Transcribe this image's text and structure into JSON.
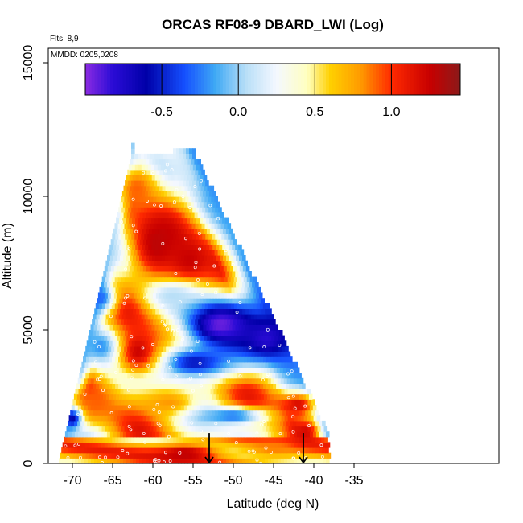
{
  "chart_data": {
    "type": "heatmap",
    "title": "ORCAS RF08-9 DBARD_LWI (Log)",
    "xlabel": "Latitude (deg N)",
    "ylabel": "Altitude (m)",
    "xlim": [
      -72.5,
      -35
    ],
    "ylim": [
      0,
      16000
    ],
    "xticks": [
      -70,
      -65,
      -60,
      -55,
      -50,
      -45,
      -40,
      -35
    ],
    "yticks": [
      0,
      5000,
      10000,
      15000
    ],
    "xtick_labels": [
      "-70",
      "-65",
      "-60",
      "-55",
      "-50",
      "-45",
      "-40",
      "-35"
    ],
    "ytick_labels": [
      "0",
      "5000",
      "10000",
      "15000"
    ],
    "flights_label": "Flts: 8,9",
    "dates_label": "MMDD: 0205,0208",
    "colorbar": {
      "range": [
        -1.0,
        1.45
      ],
      "ticks": [
        -0.5,
        0.0,
        0.5,
        1.0
      ],
      "tick_labels": [
        "-0.5",
        "0.0",
        "0.5",
        "1.0"
      ],
      "stops": [
        {
          "v": -1.0,
          "color": "#8a2be2"
        },
        {
          "v": -0.82,
          "color": "#2b0cd6"
        },
        {
          "v": -0.6,
          "color": "#0000a8"
        },
        {
          "v": -0.35,
          "color": "#1550ff"
        },
        {
          "v": -0.15,
          "color": "#3fa9f5"
        },
        {
          "v": 0.05,
          "color": "#b9dff7"
        },
        {
          "v": 0.25,
          "color": "#f4f8ff"
        },
        {
          "v": 0.45,
          "color": "#ffffc0"
        },
        {
          "v": 0.6,
          "color": "#ffd000"
        },
        {
          "v": 0.8,
          "color": "#ff9a00"
        },
        {
          "v": 1.0,
          "color": "#ff2a00"
        },
        {
          "v": 1.25,
          "color": "#c80000"
        },
        {
          "v": 1.45,
          "color": "#8b1a1a"
        }
      ]
    },
    "domain": {
      "lat_min": -71.7,
      "top_left_lat": -62.7,
      "top_left_alt": 11400,
      "top_right_lat": -55.2,
      "top_right_alt": 11700,
      "lat_max": -38.3,
      "bottom_right_alt": 1000
    },
    "features": [
      {
        "lat": -59.5,
        "alt": 8200,
        "v": 1.3,
        "s_lat": 3.5,
        "s_alt": 1400
      },
      {
        "lat": -55.5,
        "alt": 7600,
        "v": 1.25,
        "s_lat": 3.5,
        "s_alt": 1100
      },
      {
        "lat": -62.0,
        "alt": 10300,
        "v": 0.9,
        "s_lat": 3.0,
        "s_alt": 900
      },
      {
        "lat": -51.5,
        "alt": 5200,
        "v": -0.95,
        "s_lat": 5.0,
        "s_alt": 1000
      },
      {
        "lat": -46.0,
        "alt": 4700,
        "v": -0.8,
        "s_lat": 3.5,
        "s_alt": 900
      },
      {
        "lat": -55.0,
        "alt": 3800,
        "v": -0.55,
        "s_lat": 6.0,
        "s_alt": 700
      },
      {
        "lat": -62.0,
        "alt": 4200,
        "v": 1.25,
        "s_lat": 3.2,
        "s_alt": 1000
      },
      {
        "lat": -66.5,
        "alt": 4400,
        "v": -0.2,
        "s_lat": 2.2,
        "s_alt": 700
      },
      {
        "lat": -66.5,
        "alt": 6200,
        "v": -0.3,
        "s_lat": 2.0,
        "s_alt": 600
      },
      {
        "lat": -57.5,
        "alt": 6300,
        "v": 0.05,
        "s_lat": 3.0,
        "s_alt": 500
      },
      {
        "lat": -68.0,
        "alt": 2300,
        "v": 0.9,
        "s_lat": 3.0,
        "s_alt": 700
      },
      {
        "lat": -58.0,
        "alt": 2300,
        "v": 0.8,
        "s_lat": 4.0,
        "s_alt": 600
      },
      {
        "lat": -42.0,
        "alt": 2200,
        "v": 1.2,
        "s_lat": 2.5,
        "s_alt": 500
      },
      {
        "lat": -50.0,
        "alt": 1800,
        "v": -0.3,
        "s_lat": 4.0,
        "s_alt": 300
      },
      {
        "lat": -70.0,
        "alt": 1700,
        "v": -0.6,
        "s_lat": 1.2,
        "s_alt": 400
      },
      {
        "lat": -56.0,
        "alt": 400,
        "v": 1.3,
        "s_lat": 4.0,
        "s_alt": 350
      },
      {
        "lat": -45.0,
        "alt": 600,
        "v": 0.85,
        "s_lat": 4.0,
        "s_alt": 400
      },
      {
        "lat": -41.0,
        "alt": 1200,
        "v": 1.2,
        "s_lat": 1.8,
        "s_alt": 500
      }
    ],
    "arrows": [
      {
        "lat": -53.0,
        "alt_top": 600,
        "alt_bottom": 0
      },
      {
        "lat": -41.3,
        "alt_top": 600,
        "alt_bottom": 0
      }
    ]
  }
}
